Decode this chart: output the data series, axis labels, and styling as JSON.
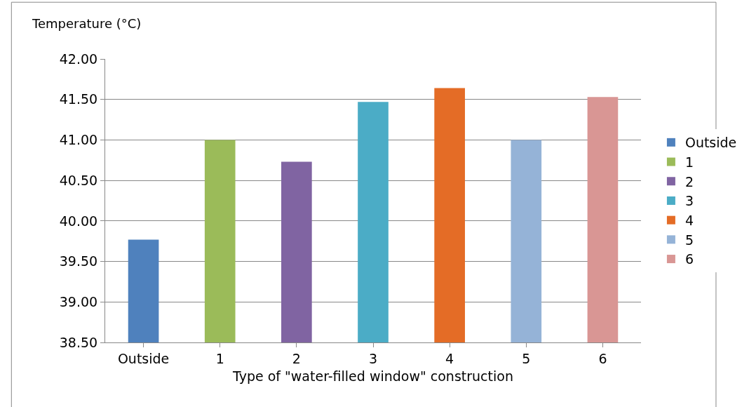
{
  "chart_data": {
    "type": "bar",
    "ylabel": "Temperature (°C)",
    "xlabel": "Type of \"water-filled window\" construction",
    "categories": [
      "Outside",
      "1",
      "2",
      "3",
      "4",
      "5",
      "6"
    ],
    "series": [
      {
        "name": "Outside",
        "color": "#4f81bd",
        "values": [
          39.77,
          null,
          null,
          null,
          null,
          null,
          null
        ]
      },
      {
        "name": "1",
        "color": "#9bbb59",
        "values": [
          null,
          41.0,
          null,
          null,
          null,
          null,
          null
        ]
      },
      {
        "name": "2",
        "color": "#8064a2",
        "values": [
          null,
          null,
          40.73,
          null,
          null,
          null,
          null
        ]
      },
      {
        "name": "3",
        "color": "#4bacc6",
        "values": [
          null,
          null,
          null,
          41.47,
          null,
          null,
          null
        ]
      },
      {
        "name": "4",
        "color": "#e46c26",
        "values": [
          null,
          null,
          null,
          null,
          41.64,
          null,
          null
        ]
      },
      {
        "name": "5",
        "color": "#95b3d7",
        "values": [
          null,
          null,
          null,
          null,
          null,
          41.0,
          null
        ]
      },
      {
        "name": "6",
        "color": "#d99694",
        "values": [
          null,
          null,
          null,
          null,
          null,
          null,
          41.53
        ]
      }
    ],
    "ylim": [
      38.5,
      42.0
    ],
    "yticks": [
      {
        "value": 38.5,
        "label": "38.50"
      },
      {
        "value": 39.0,
        "label": "39.00"
      },
      {
        "value": 39.5,
        "label": "39.50"
      },
      {
        "value": 40.0,
        "label": "40.00"
      },
      {
        "value": 40.5,
        "label": "40.50"
      },
      {
        "value": 41.0,
        "label": "41.00"
      },
      {
        "value": 41.5,
        "label": "41.50"
      },
      {
        "value": 42.0,
        "label": "42.00"
      }
    ],
    "grid": "y",
    "legend": "right"
  }
}
